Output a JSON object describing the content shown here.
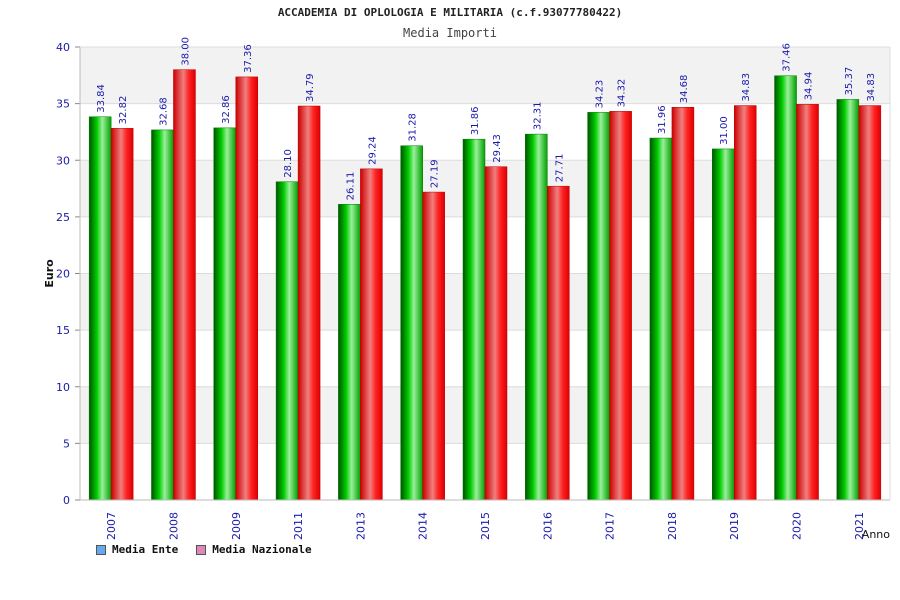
{
  "chart_data": {
    "type": "bar",
    "title": "ACCADEMIA DI OPLOLOGIA E MILITARIA (c.f.93077780422)",
    "subtitle": "Media Importi",
    "ylabel": "Euro",
    "xlabel": "Anno",
    "ylim": [
      0,
      40
    ],
    "yticks": [
      0,
      5,
      10,
      15,
      20,
      25,
      30,
      35,
      40
    ],
    "categories": [
      "2007",
      "2008",
      "2009",
      "2011",
      "2013",
      "2014",
      "2015",
      "2016",
      "2017",
      "2018",
      "2019",
      "2020",
      "2021"
    ],
    "series": [
      {
        "name": "Media Ente",
        "color": "#00b000",
        "values": [
          33.84,
          32.68,
          32.86,
          28.1,
          26.11,
          31.28,
          31.86,
          32.31,
          34.23,
          31.96,
          31.0,
          37.46,
          35.37
        ],
        "labels": [
          "33.84",
          "32.68",
          "32.86",
          "28.10",
          "26.11",
          "31.28",
          "31.86",
          "32.31",
          "34.23",
          "31.96",
          "31.00",
          "37.46",
          "35.37"
        ]
      },
      {
        "name": "Media Nazionale",
        "color": "#ee1111",
        "values": [
          32.82,
          38.0,
          37.36,
          34.79,
          29.24,
          27.19,
          29.43,
          27.71,
          34.32,
          34.68,
          34.83,
          34.94,
          34.83
        ],
        "labels": [
          "32.82",
          "38.00",
          "37.36",
          "34.79",
          "29.24",
          "27.19",
          "29.43",
          "27.71",
          "34.32",
          "34.68",
          "34.83",
          "34.94",
          "34.83"
        ]
      }
    ],
    "legend_swatch_colors": [
      "#66aaee",
      "#dd88bb"
    ],
    "grid": true,
    "legend_position": "bottom-left"
  }
}
